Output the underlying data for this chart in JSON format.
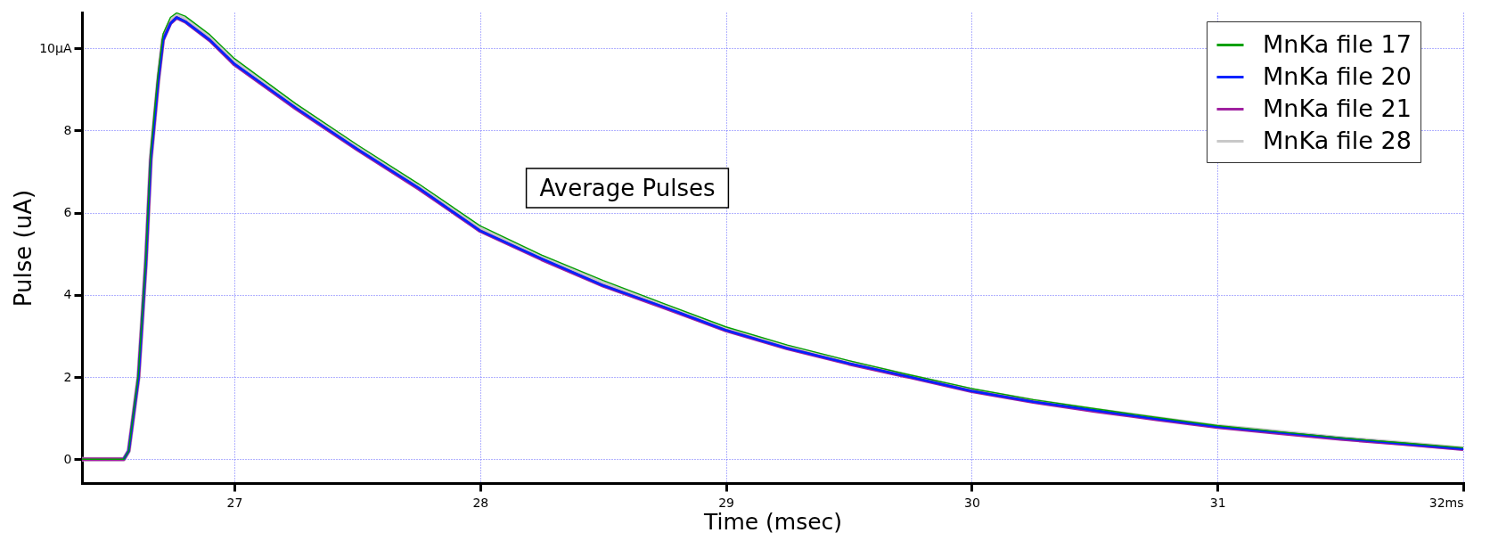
{
  "chart_data": {
    "type": "line",
    "xlabel": "Time (msec)",
    "ylabel": "Pulse (uA)",
    "annotations": [
      "Average Pulses"
    ],
    "x": [
      26.38,
      26.5,
      26.55,
      26.57,
      26.61,
      26.64,
      26.66,
      26.69,
      26.71,
      26.74,
      26.765,
      26.8,
      26.9,
      27,
      27.25,
      27.5,
      27.75,
      28,
      28.25,
      28.5,
      28.75,
      29,
      29.25,
      29.5,
      29.75,
      30,
      30.25,
      30.5,
      30.75,
      31,
      31.25,
      31.5,
      31.75,
      32
    ],
    "series": [
      {
        "name": "MnKa file 17",
        "color": "#00a000",
        "values": [
          0,
          0,
          0,
          0.2,
          2.1,
          4.9,
          7.5,
          9.4,
          10.35,
          10.75,
          10.86,
          10.78,
          10.33,
          9.75,
          8.65,
          7.65,
          6.7,
          5.68,
          4.97,
          4.35,
          3.78,
          3.22,
          2.78,
          2.4,
          2.05,
          1.72,
          1.45,
          1.23,
          1.02,
          0.82,
          0.67,
          0.52,
          0.4,
          0.28
        ]
      },
      {
        "name": "MnKa file 20",
        "color": "#0022ff",
        "values": [
          null,
          null,
          0,
          0.2,
          2,
          4.8,
          7.3,
          9.2,
          10.2,
          10.6,
          10.75,
          10.65,
          10.2,
          9.62,
          8.55,
          7.55,
          6.6,
          5.56,
          4.88,
          4.23,
          3.7,
          3.14,
          2.7,
          2.33,
          2.0,
          1.66,
          1.4,
          1.19,
          0.98,
          0.79,
          0.65,
          0.51,
          0.38,
          0.25
        ]
      },
      {
        "name": "MnKa file 21",
        "color": "#a020a0",
        "values": [
          0,
          0,
          0,
          0.2,
          2,
          4.8,
          7.3,
          9.2,
          10.2,
          10.6,
          10.74,
          10.64,
          10.19,
          9.6,
          8.53,
          7.53,
          6.58,
          5.55,
          4.86,
          4.22,
          3.68,
          3.13,
          2.69,
          2.32,
          1.99,
          1.65,
          1.39,
          1.17,
          0.97,
          0.78,
          0.63,
          0.49,
          0.37,
          0.24
        ]
      },
      {
        "name": "MnKa file 28",
        "color": "#c8c8c8",
        "values": [
          0,
          0,
          0,
          0.2,
          2,
          4.8,
          7.3,
          9.2,
          10.25,
          10.65,
          10.8,
          10.7,
          10.25,
          9.67,
          8.6,
          7.6,
          6.64,
          5.6,
          4.92,
          4.28,
          3.73,
          3.17,
          2.73,
          2.36,
          2.02,
          1.68,
          1.42,
          1.2,
          1.0,
          0.8,
          0.66,
          0.51,
          0.39,
          0.26
        ]
      }
    ],
    "xlim": [
      26.38,
      32
    ],
    "xticks": [
      27,
      28,
      29,
      30,
      31,
      {
        "value": 32,
        "label": "32ms"
      }
    ],
    "ylim": [
      -0.58,
      10.87
    ],
    "yticks": [
      0,
      2,
      4,
      6,
      8,
      {
        "value": 10,
        "label": "10μA"
      }
    ],
    "grid": true,
    "legend": "top right"
  }
}
